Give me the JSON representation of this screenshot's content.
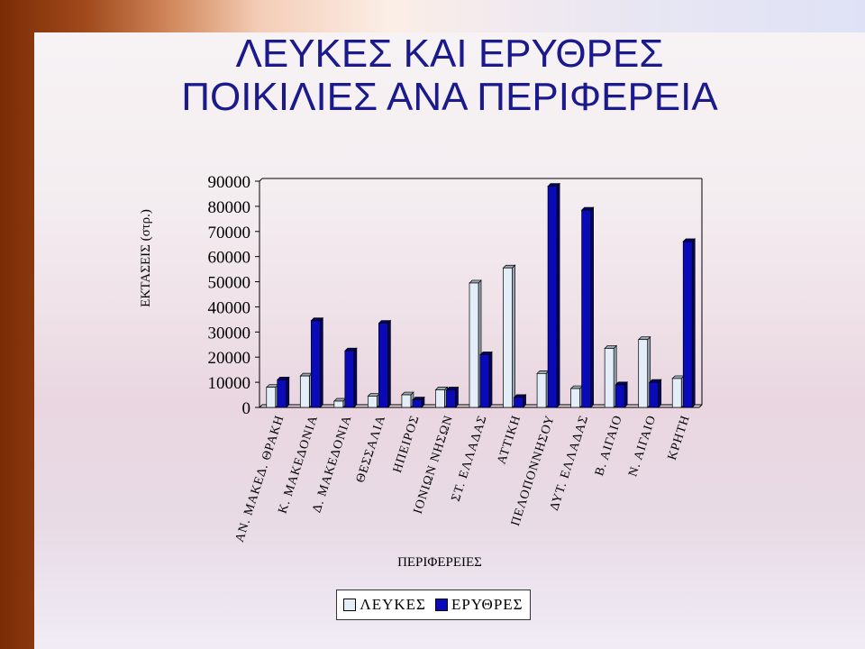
{
  "slide": {
    "title_line1": "ΛΕΥΚΕΣ ΚΑΙ ΕΡΥΘΡΕΣ",
    "title_line2": "ΠΟΙΚΙΛΙΕΣ ΑΝΑ ΠΕΡΙΦΕΡΕΙΑ"
  },
  "colors": {
    "white_series": "#e4eef8",
    "red_series": "#0a0ab8",
    "title": "#1a1a8c"
  },
  "chart_data": {
    "type": "bar",
    "title": "ΛΕΥΚΕΣ ΚΑΙ ΕΡΥΘΡΕΣ ΠΟΙΚΙΛΙΕΣ ΑΝΑ ΠΕΡΙΦΕΡΕΙΑ",
    "xlabel": "ΠΕΡΙΦΕΡΕΙΕΣ",
    "ylabel": "ΕΚΤΑΣΕΙΣ (στρ.)",
    "ylim": [
      0,
      90000
    ],
    "yticks": [
      "90000",
      "80000",
      "70000",
      "60000",
      "50000",
      "40000",
      "30000",
      "20000",
      "10000",
      "0"
    ],
    "grid": false,
    "legend_position": "bottom",
    "categories": [
      "ΑΝ. ΜΑΚΕΔ. ΘΡΑΚΗ",
      "Κ. ΜΑΚΕΔΟΝΙΑ",
      "Δ. ΜΑΚΕΔΟΝΙΑ",
      "ΘΕΣΣΑΛΙΑ",
      "ΗΠΕΙΡΟΣ",
      "ΙΟΝΙΩΝ ΝΗΣΩΝ",
      "ΣΤ. ΕΛΛΑΔΑΣ",
      "ΑΤΤΙΚΗ",
      "ΠΕΛΟΠΟΝΝΗΣΟΥ",
      "ΔΥΤ. ΕΛΛΑΔΑΣ",
      "Β. ΑΙΓΑΙΟ",
      "Ν. ΑΙΓΑΙΟ",
      "ΚΡΗΤΗ"
    ],
    "series": [
      {
        "name": "ΛΕΥΚΕΣ",
        "values": [
          8000,
          12500,
          2500,
          4500,
          5000,
          7000,
          49500,
          55500,
          13500,
          7500,
          23500,
          27000,
          11500
        ]
      },
      {
        "name": "ΕΡΥΘΡΕΣ",
        "values": [
          11000,
          34500,
          22500,
          33500,
          3000,
          7000,
          21000,
          4000,
          88000,
          78500,
          9000,
          10000,
          66000
        ]
      }
    ]
  }
}
